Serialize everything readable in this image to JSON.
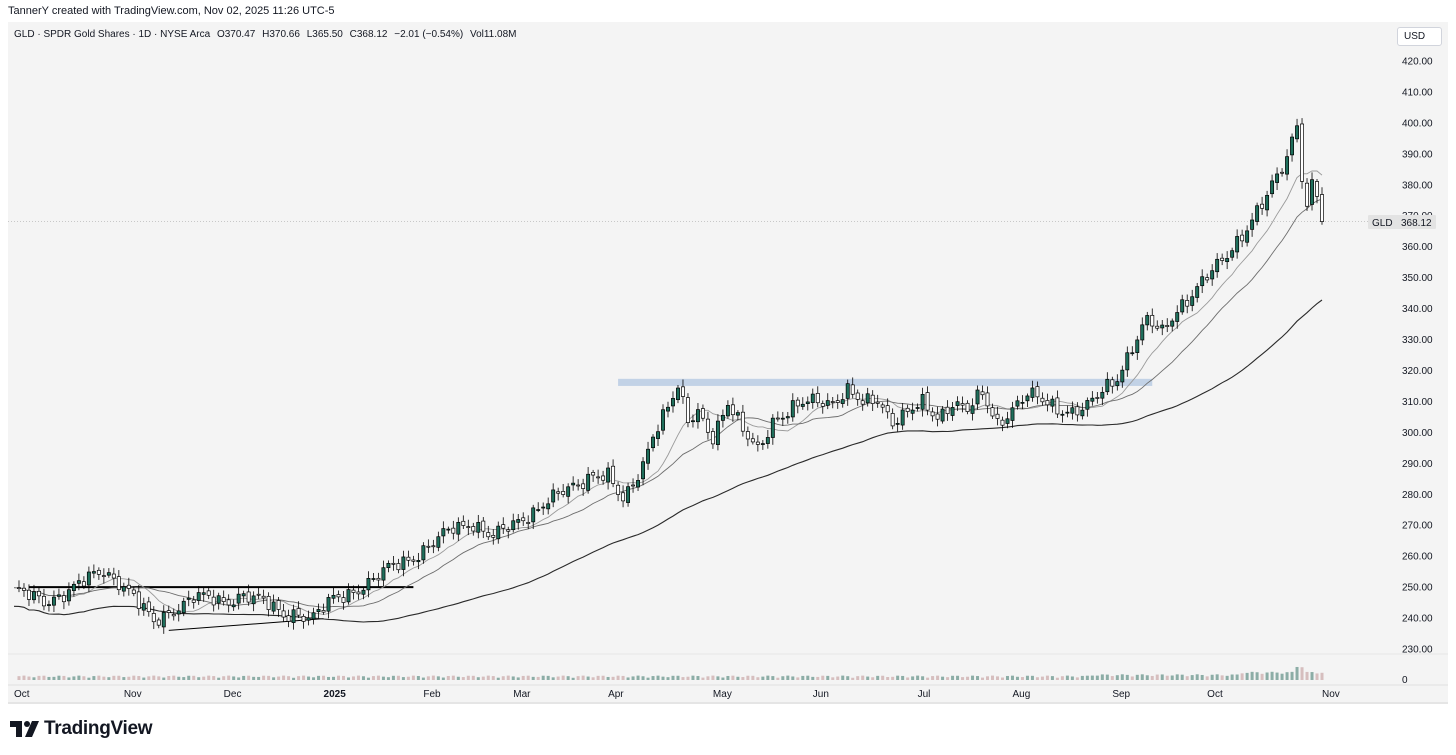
{
  "header": {
    "credit": "TannerY created with TradingView.com, Nov 02, 2025 11:26 UTC-5"
  },
  "legend": {
    "symbol": "GLD · SPDR Gold Shares · 1D · NYSE Arca",
    "open": "O370.47",
    "high": "H370.66",
    "low": "L365.50",
    "close": "C368.12",
    "change": "−2.01 (−0.54%)",
    "volume": "Vol11.08M"
  },
  "currency_button": "USD",
  "price_tag": {
    "symbol": "GLD",
    "price": "368.12"
  },
  "footer": {
    "brand": "TradingView"
  },
  "colors": {
    "up": "#1f6f5c",
    "down": "#ffffff",
    "resistance_zone": "#b9cbe3"
  },
  "chart_data": {
    "type": "candlestick",
    "ylim": [
      230,
      420
    ],
    "y_ticks": [
      "420.00",
      "410.00",
      "400.00",
      "390.00",
      "380.00",
      "370.00",
      "360.00",
      "350.00",
      "340.00",
      "330.00",
      "320.00",
      "310.00",
      "300.00",
      "290.00",
      "280.00",
      "270.00",
      "260.00",
      "250.00",
      "240.00",
      "230.00"
    ],
    "volume_axis_label": "0",
    "x_ticks": [
      {
        "label": "Oct",
        "i": 0
      },
      {
        "label": "Nov",
        "i": 22
      },
      {
        "label": "Dec",
        "i": 42
      },
      {
        "label": "2025",
        "i": 62,
        "bold": true
      },
      {
        "label": "Feb",
        "i": 82
      },
      {
        "label": "Mar",
        "i": 100
      },
      {
        "label": "Apr",
        "i": 119
      },
      {
        "label": "May",
        "i": 140
      },
      {
        "label": "Jun",
        "i": 160
      },
      {
        "label": "Jul",
        "i": 181
      },
      {
        "label": "Aug",
        "i": 200
      },
      {
        "label": "Sep",
        "i": 220
      },
      {
        "label": "Oct",
        "i": 239
      },
      {
        "label": "Nov",
        "i": 262
      }
    ],
    "bars": 262,
    "anchors": [
      [
        0,
        249
      ],
      [
        6,
        245
      ],
      [
        12,
        250
      ],
      [
        18,
        255
      ],
      [
        22,
        251
      ],
      [
        24,
        247
      ],
      [
        28,
        238
      ],
      [
        32,
        243
      ],
      [
        36,
        247
      ],
      [
        42,
        245
      ],
      [
        46,
        248
      ],
      [
        50,
        245
      ],
      [
        54,
        241
      ],
      [
        56,
        242
      ],
      [
        60,
        240
      ],
      [
        64,
        246
      ],
      [
        68,
        249
      ],
      [
        72,
        252
      ],
      [
        76,
        257
      ],
      [
        80,
        260
      ],
      [
        84,
        264
      ],
      [
        88,
        269
      ],
      [
        92,
        271
      ],
      [
        96,
        266
      ],
      [
        100,
        270
      ],
      [
        106,
        277
      ],
      [
        112,
        282
      ],
      [
        116,
        287
      ],
      [
        119,
        286
      ],
      [
        122,
        277
      ],
      [
        124,
        283
      ],
      [
        126,
        290
      ],
      [
        128,
        300
      ],
      [
        131,
        308
      ],
      [
        133,
        314
      ],
      [
        135,
        303
      ],
      [
        137,
        307
      ],
      [
        140,
        299
      ],
      [
        143,
        309
      ],
      [
        146,
        300
      ],
      [
        149,
        295
      ],
      [
        152,
        304
      ],
      [
        155,
        306
      ],
      [
        158,
        309
      ],
      [
        161,
        311
      ],
      [
        164,
        310
      ],
      [
        167,
        313
      ],
      [
        170,
        309
      ],
      [
        173,
        311
      ],
      [
        176,
        304
      ],
      [
        179,
        306
      ],
      [
        182,
        309
      ],
      [
        185,
        305
      ],
      [
        188,
        310
      ],
      [
        191,
        307
      ],
      [
        194,
        312
      ],
      [
        197,
        303
      ],
      [
        200,
        308
      ],
      [
        203,
        312
      ],
      [
        206,
        310
      ],
      [
        209,
        308
      ],
      [
        212,
        307
      ],
      [
        215,
        308
      ],
      [
        218,
        313
      ],
      [
        221,
        318
      ],
      [
        224,
        328
      ],
      [
        227,
        336
      ],
      [
        230,
        332
      ],
      [
        233,
        340
      ],
      [
        236,
        345
      ],
      [
        239,
        350
      ],
      [
        242,
        355
      ],
      [
        245,
        362
      ],
      [
        248,
        369
      ],
      [
        251,
        376
      ],
      [
        254,
        385
      ],
      [
        256,
        394
      ],
      [
        257,
        401
      ],
      [
        258,
        383
      ],
      [
        259,
        374
      ],
      [
        260,
        380
      ],
      [
        261,
        378
      ],
      [
        262,
        368
      ]
    ],
    "moving_averages": [
      {
        "period": 10,
        "color": "#9a9a9a"
      },
      {
        "period": 20,
        "color": "#6e6e6e"
      },
      {
        "period": 50,
        "color": "#2a2a2a"
      }
    ],
    "annotations": {
      "resistance_zone": {
        "x_from": 121,
        "x_to": 228,
        "y_from": 315,
        "y_to": 317.3
      },
      "resistance_line": {
        "x_from": 3,
        "x_to": 80,
        "y": 250
      },
      "support_trendline": {
        "x_from": 31,
        "x_to": 62,
        "y_from": 236,
        "y_to": 239.8
      }
    },
    "last_price": 368.12
  }
}
